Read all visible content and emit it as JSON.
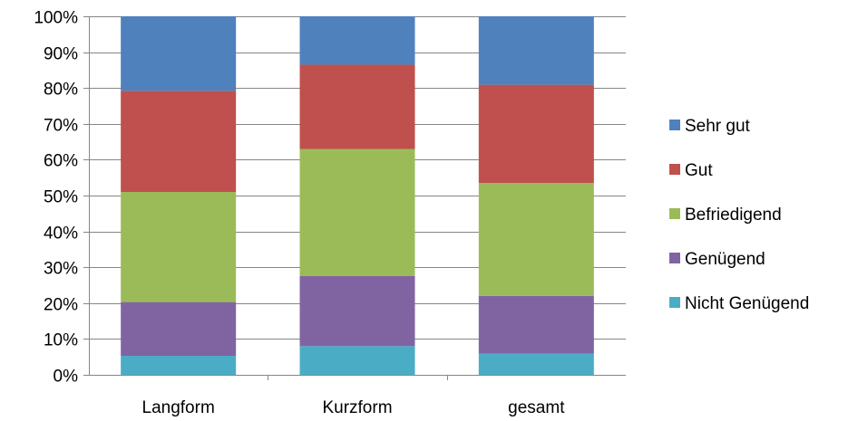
{
  "chart_data": {
    "type": "bar",
    "stacked": true,
    "percent": true,
    "categories": [
      "Langform",
      "Kurzform",
      "gesamt"
    ],
    "series": [
      {
        "name": "Nicht Genügend",
        "color": "#4BACC6",
        "values": [
          5.3,
          8.0,
          5.9
        ]
      },
      {
        "name": "Genügend",
        "color": "#8064A2",
        "values": [
          15.0,
          19.6,
          16.1
        ]
      },
      {
        "name": "Befriedigend",
        "color": "#9BBB59",
        "values": [
          30.7,
          35.4,
          31.5
        ]
      },
      {
        "name": "Gut",
        "color": "#C0504D",
        "values": [
          28.2,
          23.5,
          27.4
        ]
      },
      {
        "name": "Sehr gut",
        "color": "#4F81BD",
        "values": [
          20.8,
          13.5,
          19.1
        ]
      }
    ],
    "ylim": [
      0,
      100
    ],
    "yticks": [
      "0%",
      "10%",
      "20%",
      "30%",
      "40%",
      "50%",
      "60%",
      "70%",
      "80%",
      "90%",
      "100%"
    ],
    "grid": true,
    "legend_position": "right",
    "legend_order": [
      "Sehr gut",
      "Gut",
      "Befriedigend",
      "Genügend",
      "Nicht Genügend"
    ]
  }
}
